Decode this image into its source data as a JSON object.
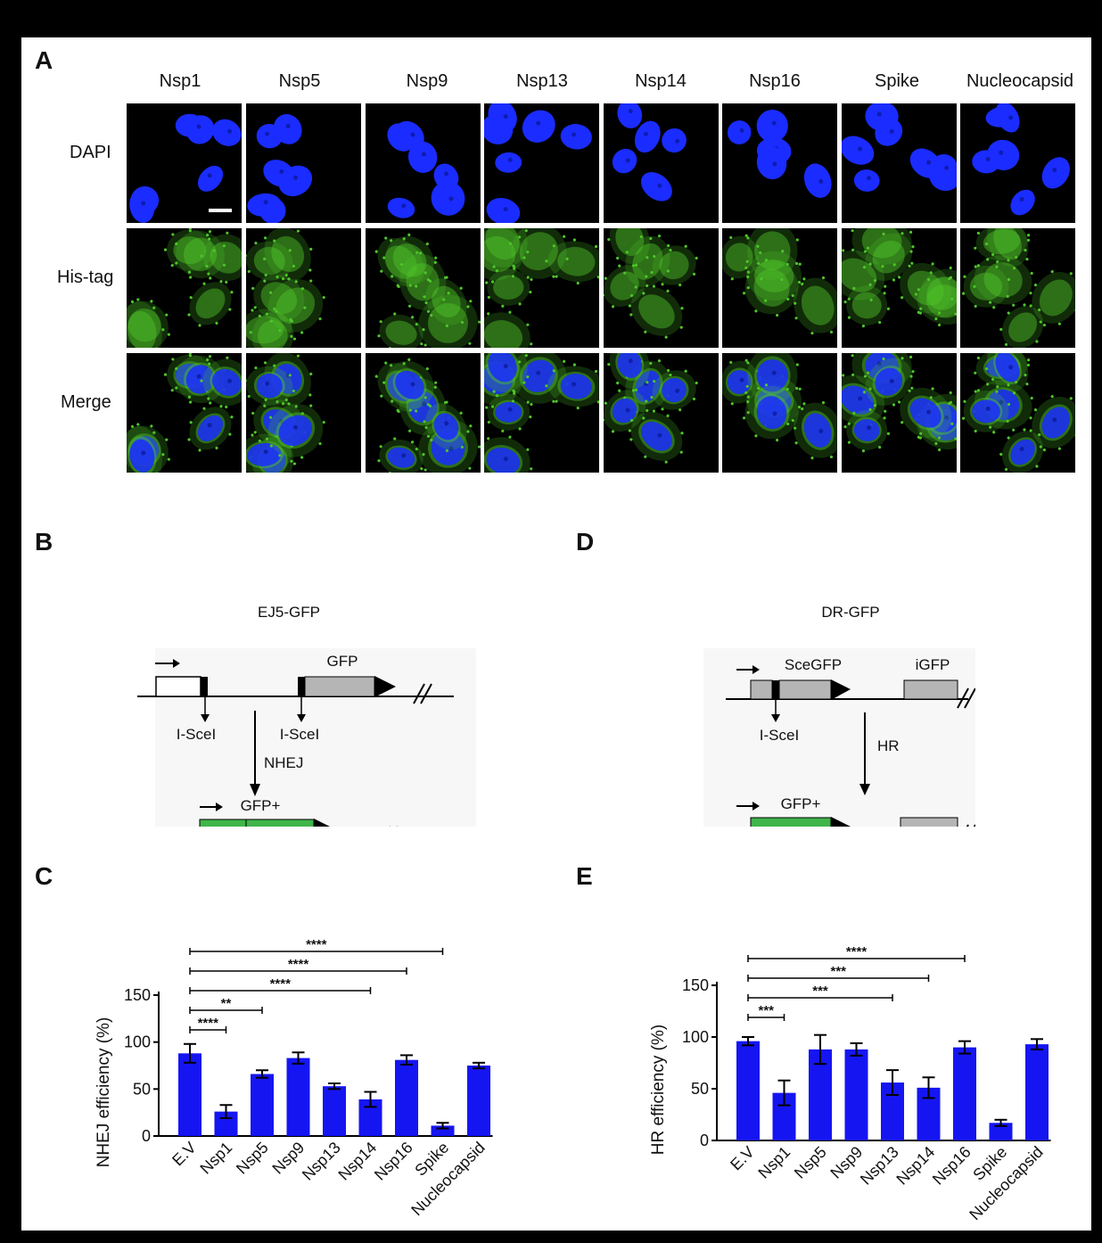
{
  "panels": {
    "a": "A",
    "b": "B",
    "c": "C",
    "d": "D",
    "e": "E"
  },
  "microscopy": {
    "columns": [
      "Nsp1",
      "Nsp5",
      "Nsp9",
      "Nsp13",
      "Nsp14",
      "Nsp16",
      "Spike",
      "Nucleocapsid"
    ],
    "rows": [
      "DAPI",
      "His-tag",
      "Merge"
    ],
    "colors": {
      "dapi": "#1a2cff",
      "his": "#4fc52b",
      "background": "#000000"
    }
  },
  "diagram_b": {
    "title": "EJ5-GFP",
    "gfp": "GFP",
    "isce_left": "I-SceI",
    "isce_right": "I-SceI",
    "arrow_label": "NHEJ",
    "product": "GFP+"
  },
  "diagram_d": {
    "title": "DR-GFP",
    "scegfp": "SceGFP",
    "igfp": "iGFP",
    "isce": "I-SceI",
    "arrow_label": "HR",
    "product": "GFP+"
  },
  "chart_data": [
    {
      "type": "bar",
      "ylabel": "NHEJ efficiency (%)",
      "ylim": [
        0,
        150
      ],
      "yticks": [
        "0",
        "50",
        "100",
        "150"
      ],
      "categories": [
        "E.V",
        "Nsp1",
        "Nsp5",
        "Nsp9",
        "Nsp13",
        "Nsp14",
        "Nsp16",
        "Spike",
        "Nucleocapsid"
      ],
      "values": [
        88,
        26,
        66,
        83,
        53,
        39,
        81,
        11,
        75
      ],
      "errors": [
        10,
        7,
        4,
        6,
        3,
        8,
        5,
        3,
        3
      ],
      "color": "#1515f2",
      "significance": [
        {
          "from": "E.V",
          "to": "Spike",
          "label": "****"
        },
        {
          "from": "E.V",
          "to": "Nsp16",
          "label": "****"
        },
        {
          "from": "E.V",
          "to": "Nsp14",
          "label": "****"
        },
        {
          "from": "E.V",
          "to": "Nsp5",
          "label": "**"
        },
        {
          "from": "E.V",
          "to": "Nsp1",
          "label": "****"
        }
      ]
    },
    {
      "type": "bar",
      "ylabel": "HR efficiency (%)",
      "ylim": [
        0,
        150
      ],
      "yticks": [
        "0",
        "50",
        "100",
        "150"
      ],
      "categories": [
        "E.V",
        "Nsp1",
        "Nsp5",
        "Nsp9",
        "Nsp13",
        "Nsp14",
        "Nsp16",
        "Spike",
        "Nucleocapsid"
      ],
      "values": [
        96,
        46,
        88,
        88,
        56,
        51,
        90,
        17,
        93
      ],
      "errors": [
        4,
        12,
        14,
        6,
        12,
        10,
        6,
        3,
        5
      ],
      "color": "#1515f2",
      "significance": [
        {
          "from": "E.V",
          "to": "Nsp16",
          "label": "****"
        },
        {
          "from": "E.V",
          "to": "Nsp14",
          "label": "***"
        },
        {
          "from": "E.V",
          "to": "Nsp13",
          "label": "***"
        },
        {
          "from": "E.V",
          "to": "Nsp1",
          "label": "***"
        }
      ]
    }
  ]
}
